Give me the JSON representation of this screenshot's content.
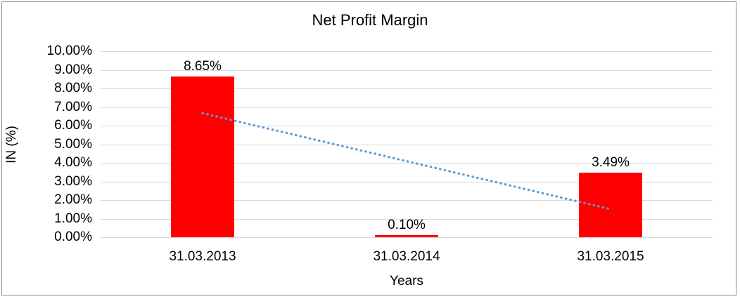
{
  "chart_data": {
    "type": "bar",
    "title": "Net Profit Margin",
    "xlabel": "Years",
    "ylabel": "IN (%)",
    "categories": [
      "31.03.2013",
      "31.03.2014",
      "31.03.2015"
    ],
    "values": [
      8.65,
      0.1,
      3.49
    ],
    "value_labels": [
      "8.65%",
      "0.10%",
      "3.49%"
    ],
    "yticks": [
      "0.00%",
      "1.00%",
      "2.00%",
      "3.00%",
      "4.00%",
      "5.00%",
      "6.00%",
      "7.00%",
      "8.00%",
      "9.00%",
      "10.00%"
    ],
    "ylim": [
      0,
      10
    ],
    "grid": true,
    "legend": "none",
    "colors": {
      "bar": "#ff0000",
      "gridline": "#d9d9d9",
      "text": "#000000",
      "frame_border": "#8c8c8c",
      "trendline": "#5b9bd5"
    },
    "trendline": {
      "type": "linear",
      "style": "dotted",
      "start_value": 6.67,
      "end_value": 1.51
    }
  }
}
